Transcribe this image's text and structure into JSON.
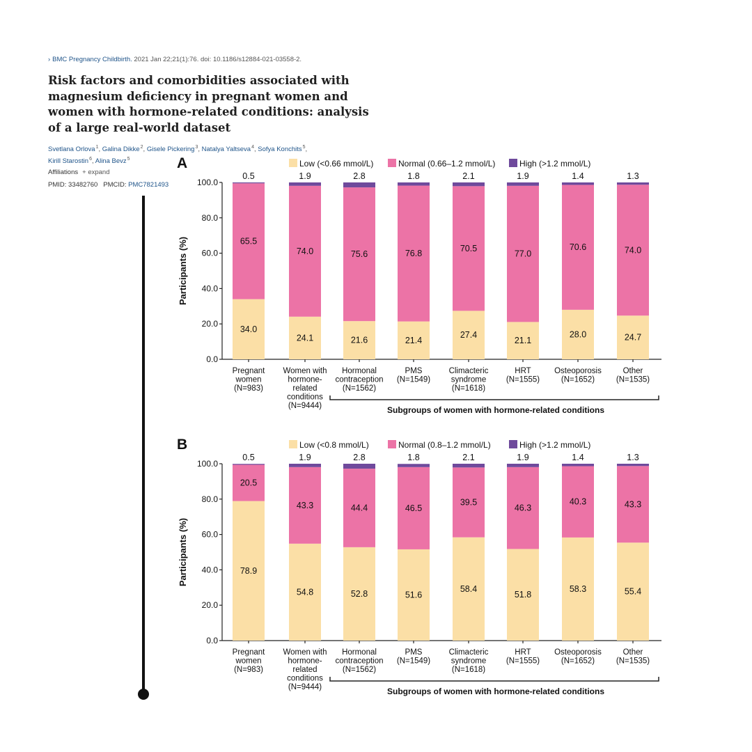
{
  "citation": {
    "journal": "BMC Pregnancy Childbirth.",
    "details": "2021 Jan 22;21(1):76. doi: 10.1186/s12884-021-03558-2."
  },
  "title": "Risk factors and comorbidities associated with magnesium deficiency in pregnant women and women with hormone-related conditions: analysis of a large real-world dataset",
  "authors": [
    {
      "name": "Svetlana Orlova",
      "sup": "1"
    },
    {
      "name": "Galina Dikke",
      "sup": "2"
    },
    {
      "name": "Gisele Pickering",
      "sup": "3"
    },
    {
      "name": "Natalya Yaltseva",
      "sup": "4"
    },
    {
      "name": "Sofya Konchits",
      "sup": "5"
    },
    {
      "name": "Kirill Starostin",
      "sup": "6"
    },
    {
      "name": "Alina Bevz",
      "sup": "5"
    }
  ],
  "affiliations": {
    "label": "Affiliations",
    "expand": "+ expand"
  },
  "identifiers": {
    "pmid_label": "PMID:",
    "pmid": "33482760",
    "pmcid_label": "PMCID:",
    "pmcid": "PMC7821493"
  },
  "colors": {
    "low": "#fbdfa6",
    "normal": "#ec73a6",
    "high": "#6f4a9c",
    "axis": "#222222"
  },
  "chart_data": [
    {
      "type": "bar",
      "stacked": true,
      "panel_label": "A",
      "categories": [
        [
          "Pregnant",
          "women",
          "(N=983)"
        ],
        [
          "Women with",
          "hormone-",
          "related",
          "conditions",
          "(N=9444)"
        ],
        [
          "Hormonal",
          "contraception",
          "(N=1562)"
        ],
        [
          "PMS",
          "(N=1549)"
        ],
        [
          "Climacteric",
          "syndrome",
          "(N=1618)"
        ],
        [
          "HRT",
          "(N=1555)"
        ],
        [
          "Osteoporosis",
          "(N=1652)"
        ],
        [
          "Other",
          "(N=1535)"
        ]
      ],
      "series": [
        {
          "name": "Low (<0.66 mmol/L)",
          "color": "#fbdfa6",
          "values": [
            34.0,
            24.1,
            21.6,
            21.4,
            27.4,
            21.1,
            28.0,
            24.7
          ],
          "labels": [
            "34.0",
            "24.1",
            "21.6",
            "21.4",
            "27.4",
            "21.1",
            "28.0",
            "24.7"
          ]
        },
        {
          "name": "Normal (0.66–1.2 mmol/L)",
          "color": "#ec73a6",
          "values": [
            65.5,
            74.0,
            75.6,
            76.8,
            70.5,
            77.0,
            70.6,
            74.0
          ],
          "labels": [
            "65.5",
            "74.0",
            "75.6",
            "76.8",
            "70.5",
            "77.0",
            "70.6",
            "74.0"
          ]
        },
        {
          "name": "High (>1.2 mmol/L)",
          "color": "#6f4a9c",
          "values": [
            0.5,
            1.9,
            2.8,
            1.8,
            2.1,
            1.9,
            1.4,
            1.3
          ],
          "labels": [
            "0.5",
            "1.9",
            "2.8",
            "1.8",
            "2.1",
            "1.9",
            "1.4",
            "1.3"
          ]
        }
      ],
      "ylabel": "Participants (%)",
      "ylim": [
        0,
        100
      ],
      "yticks": [
        "0.0",
        "20.0",
        "40.0",
        "60.0",
        "80.0",
        "100.0"
      ],
      "bracket_label": "Subgroups of women with hormone-related conditions",
      "legend": "top",
      "grid": false
    },
    {
      "type": "bar",
      "stacked": true,
      "panel_label": "B",
      "categories": [
        [
          "Pregnant",
          "women",
          "(N=983)"
        ],
        [
          "Women with",
          "hormone-",
          "related",
          "conditions",
          "(N=9444)"
        ],
        [
          "Hormonal",
          "contraception",
          "(N=1562)"
        ],
        [
          "PMS",
          "(N=1549)"
        ],
        [
          "Climacteric",
          "syndrome",
          "(N=1618)"
        ],
        [
          "HRT",
          "(N=1555)"
        ],
        [
          "Osteoporosis",
          "(N=1652)"
        ],
        [
          "Other",
          "(N=1535)"
        ]
      ],
      "series": [
        {
          "name": "Low (<0.8 mmol/L)",
          "color": "#fbdfa6",
          "values": [
            78.9,
            54.8,
            52.8,
            51.6,
            58.4,
            51.8,
            58.3,
            55.4
          ],
          "labels": [
            "78.9",
            "54.8",
            "52.8",
            "51.6",
            "58.4",
            "51.8",
            "58.3",
            "55.4"
          ]
        },
        {
          "name": "Normal (0.8–1.2 mmol/L)",
          "color": "#ec73a6",
          "values": [
            20.5,
            43.3,
            44.4,
            46.5,
            39.5,
            46.3,
            40.3,
            43.3
          ],
          "labels": [
            "20.5",
            "43.3",
            "44.4",
            "46.5",
            "39.5",
            "46.3",
            "40.3",
            "43.3"
          ]
        },
        {
          "name": "High (>1.2 mmol/L)",
          "color": "#6f4a9c",
          "values": [
            0.5,
            1.9,
            2.8,
            1.8,
            2.1,
            1.9,
            1.4,
            1.3
          ],
          "labels": [
            "0.5",
            "1.9",
            "2.8",
            "1.8",
            "2.1",
            "1.9",
            "1.4",
            "1.3"
          ]
        }
      ],
      "ylabel": "Participants (%)",
      "ylim": [
        0,
        100
      ],
      "yticks": [
        "0.0",
        "20.0",
        "40.0",
        "60.0",
        "80.0",
        "100.0"
      ],
      "bracket_label": "Subgroups of women with hormone-related conditions",
      "legend": "top",
      "grid": false
    }
  ]
}
